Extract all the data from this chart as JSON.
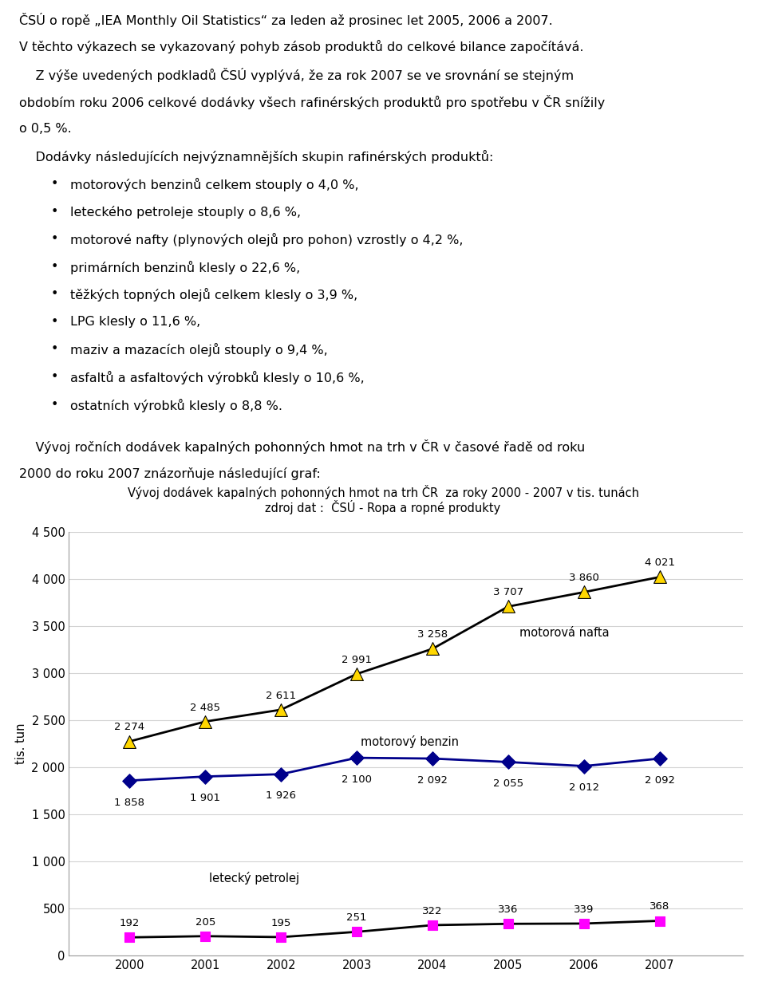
{
  "title_line1": "Vývoj dodávek kapalných pohonných hmot na trh ČR  za roky 2000 - 2007 v tis. tunách",
  "title_line2": "zdroj dat :  ČSÚ - Ropa a ropné produkty",
  "years": [
    2000,
    2001,
    2002,
    2003,
    2004,
    2005,
    2006,
    2007
  ],
  "nafta": [
    2274,
    2485,
    2611,
    2991,
    3258,
    3707,
    3860,
    4021
  ],
  "benzin": [
    1858,
    1901,
    1926,
    2100,
    2092,
    2055,
    2012,
    2092
  ],
  "petrolej": [
    192,
    205,
    195,
    251,
    322,
    336,
    339,
    368
  ],
  "nafta_color": "#FFD700",
  "benzin_color": "#00008B",
  "petrolej_color": "#FF00FF",
  "line_color_nafta": "#000000",
  "line_color_benzin": "#00008B",
  "line_color_petrolej": "#000000",
  "ylabel": "tis. tun",
  "ylim": [
    0,
    4500
  ],
  "yticks": [
    0,
    500,
    1000,
    1500,
    2000,
    2500,
    3000,
    3500,
    4000,
    4500
  ],
  "label_nafta": "motorová nafta",
  "label_benzin": "motorový benzin",
  "label_petrolej": "letecký petrolej",
  "grid_color": "#D3D3D3",
  "text_lines": [
    {
      "txt": "ČSÚ o ropě „IEA Monthly Oil Statistics“ za leden až prosinec let 2005, 2006 a 2007.",
      "bullet": false
    },
    {
      "txt": "V těchto výkazech se vykazovaný pohyb zásob produktů do celkové bilance započítává.",
      "bullet": false
    },
    {
      "txt": "    Z výše uvedených podkladů ČSÚ vyplývá, že za rok 2007 se ve srovnání se stejným",
      "bullet": false
    },
    {
      "txt": "obdobím roku 2006 celkové dodávky všech rafinérských produktů pro spotřebu v ČR snížily",
      "bullet": false
    },
    {
      "txt": "o 0,5 %.",
      "bullet": false
    },
    {
      "txt": "    Dodávky následujících nejvýznamnějších skupin rafinérských produktů:",
      "bullet": false
    },
    {
      "txt": "motorových benzinů celkem stouply o 4,0 %,",
      "bullet": true
    },
    {
      "txt": "leteckého petroleje stouply o 8,6 %,",
      "bullet": true
    },
    {
      "txt": "motorové nafty (plynových olejů pro pohon) vzrostly o 4,2 %,",
      "bullet": true
    },
    {
      "txt": "primárních benzinů klesly o 22,6 %,",
      "bullet": true
    },
    {
      "txt": "těžkých topných olejů celkem klesly o 3,9 %,",
      "bullet": true
    },
    {
      "txt": "LPG klesly o 11,6 %,",
      "bullet": true
    },
    {
      "txt": "maziv a mazacích olejů stouply o 9,4 %,",
      "bullet": true
    },
    {
      "txt": "asfaltů a asfaltových výrobků klesly o 10,6 %,",
      "bullet": true
    },
    {
      "txt": "ostatních výrobků klesly o 8,8 %.",
      "bullet": true
    },
    {
      "txt": "",
      "bullet": false
    },
    {
      "txt": "    Vývoj ročních dodávek kapalných pohonných hmot na trh v ČR v časové řadě od roku",
      "bullet": false
    },
    {
      "txt": "2000 do roku 2007 znázorňuje následující graf:",
      "bullet": false
    }
  ]
}
